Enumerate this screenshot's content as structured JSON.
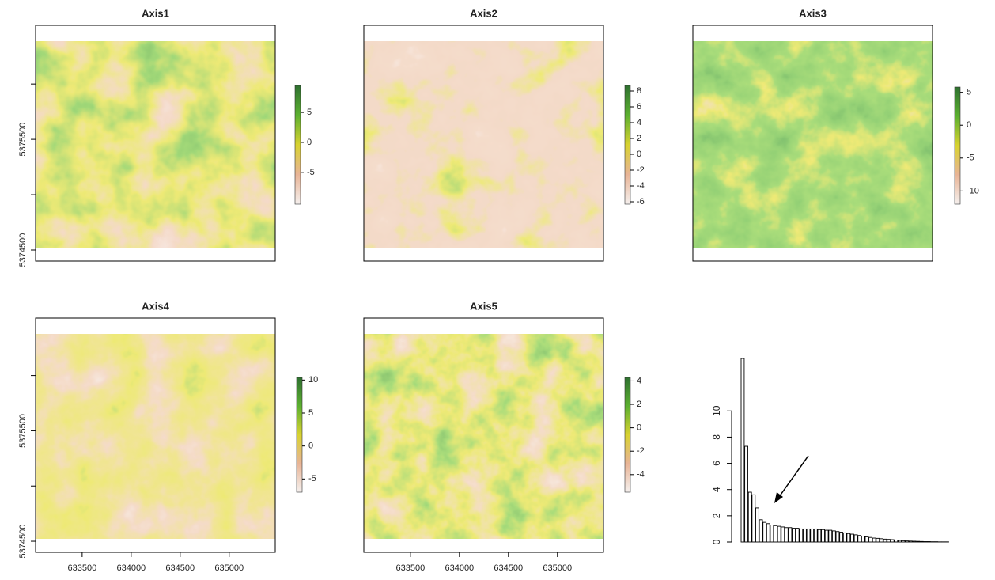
{
  "chart_data": [
    {
      "type": "raster",
      "title": "Axis1",
      "ylim": [
        5374400,
        5376530
      ],
      "yticks": [
        5374500,
        {
          "value": 5375000,
          "label": null
        },
        5375500,
        {
          "value": 5376000,
          "label": null
        }
      ],
      "colorbar": {
        "ylim": [
          -10.3,
          9.5
        ],
        "yticks": [
          -5,
          0,
          5
        ]
      },
      "colormap": [
        "#f5f0ee",
        "#e8b496",
        "#d8d230",
        "#5cb030",
        "#2e7030"
      ]
    },
    {
      "type": "raster",
      "title": "Axis2",
      "colorbar": {
        "ylim": [
          -6.3,
          8.7
        ],
        "yticks": [
          -6,
          -4,
          -2,
          0,
          2,
          4,
          6,
          8
        ]
      },
      "colormap": [
        "#f5f0ee",
        "#e8b496",
        "#d8d230",
        "#5cb030",
        "#2e7030"
      ]
    },
    {
      "type": "raster",
      "title": "Axis3",
      "colorbar": {
        "ylim": [
          -12,
          5.8
        ],
        "yticks": [
          -10,
          -5,
          0,
          5
        ]
      },
      "colormap": [
        "#f5f0ee",
        "#e8b496",
        "#d8d230",
        "#5cb030",
        "#2e7030"
      ]
    },
    {
      "type": "raster",
      "title": "Axis4",
      "ylim": [
        5374400,
        5376520
      ],
      "xlim": [
        633025,
        635470
      ],
      "yticks": [
        5374500,
        {
          "value": 5375000,
          "label": null
        },
        5375500,
        {
          "value": 5376000,
          "label": null
        }
      ],
      "xticks": [
        633500,
        634000,
        634500,
        635000
      ],
      "colorbar": {
        "ylim": [
          -7,
          10.4
        ],
        "yticks": [
          -5,
          0,
          5,
          10
        ]
      },
      "colormap": [
        "#f5f0ee",
        "#e8b496",
        "#d8d230",
        "#5cb030",
        "#2e7030"
      ]
    },
    {
      "type": "raster",
      "title": "Axis5",
      "xlim": [
        633025,
        635470
      ],
      "xticks": [
        633500,
        634000,
        634500,
        635000
      ],
      "colorbar": {
        "ylim": [
          -5.5,
          4.3
        ],
        "yticks": [
          -4,
          -2,
          0,
          2,
          4
        ]
      },
      "colormap": [
        "#f5f0ee",
        "#e8b496",
        "#d8d230",
        "#5cb030",
        "#2e7030"
      ]
    },
    {
      "type": "bar",
      "ylim": [
        0,
        14
      ],
      "yticks": [
        0,
        2,
        4,
        6,
        8,
        10
      ],
      "color": "#ffffff",
      "values": [
        14,
        7.3,
        3.8,
        3.6,
        2.6,
        1.7,
        1.5,
        1.4,
        1.3,
        1.25,
        1.2,
        1.15,
        1.1,
        1.1,
        1.05,
        1.05,
        1.0,
        1.0,
        1.0,
        1.0,
        1.0,
        0.95,
        0.95,
        0.9,
        0.9,
        0.85,
        0.8,
        0.75,
        0.7,
        0.65,
        0.6,
        0.55,
        0.5,
        0.45,
        0.4,
        0.35,
        0.3,
        0.28,
        0.25,
        0.22,
        0.2,
        0.18,
        0.15,
        0.12,
        0.1,
        0.08,
        0.07,
        0.06,
        0.05,
        0.04,
        0.03,
        0.03,
        0.02,
        0.02,
        0.01,
        0.01,
        0.01,
        0,
        0,
        0
      ]
    }
  ]
}
